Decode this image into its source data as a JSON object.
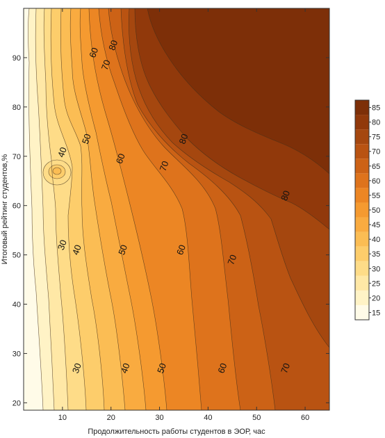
{
  "chart_data": {
    "type": "contour",
    "xlabel": "Продолжительность работы студентов в ЭОР, час",
    "ylabel": "Итоговый рейтинг студентов,%",
    "xlim": [
      2,
      65
    ],
    "ylim": [
      18.5,
      100
    ],
    "x_ticks": [
      10,
      20,
      30,
      40,
      50,
      60
    ],
    "y_ticks": [
      20,
      30,
      40,
      50,
      60,
      70,
      80,
      90
    ],
    "levels": [
      15,
      20,
      25,
      30,
      35,
      40,
      45,
      50,
      55,
      60,
      65,
      70,
      75,
      80,
      85
    ],
    "colorbar": {
      "placement": "right",
      "ticks": [
        15,
        20,
        25,
        30,
        35,
        40,
        45,
        50,
        55,
        60,
        65,
        70,
        75,
        80,
        85
      ],
      "colors": [
        "#fffbe8",
        "#fff3c6",
        "#ffe8a6",
        "#fedc88",
        "#fdcd6b",
        "#fbbd54",
        "#f9ab40",
        "#f59a30",
        "#ec8624",
        "#de731c",
        "#cc6216",
        "#b95312",
        "#a5470f",
        "#91390b",
        "#7d2f08"
      ]
    },
    "contour_labels": [
      {
        "value": "30",
        "x": 13,
        "y": 27
      },
      {
        "value": "40",
        "x": 23,
        "y": 27
      },
      {
        "value": "50",
        "x": 30.5,
        "y": 27
      },
      {
        "value": "60",
        "x": 43,
        "y": 27
      },
      {
        "value": "70",
        "x": 56,
        "y": 27
      },
      {
        "value": "30",
        "x": 10,
        "y": 52
      },
      {
        "value": "40",
        "x": 13,
        "y": 51
      },
      {
        "value": "50",
        "x": 22.5,
        "y": 51
      },
      {
        "value": "60",
        "x": 34.5,
        "y": 51
      },
      {
        "value": "70",
        "x": 45,
        "y": 49
      },
      {
        "value": "80",
        "x": 56,
        "y": 62
      },
      {
        "value": "40",
        "x": 10,
        "y": 70.8
      },
      {
        "value": "50",
        "x": 15,
        "y": 73.5
      },
      {
        "value": "60",
        "x": 22,
        "y": 69.5
      },
      {
        "value": "70",
        "x": 31,
        "y": 68
      },
      {
        "value": "80",
        "x": 35,
        "y": 73.5
      },
      {
        "value": "60",
        "x": 16.5,
        "y": 91
      },
      {
        "value": "70",
        "x": 19,
        "y": 88.5
      },
      {
        "value": "80",
        "x": 20.5,
        "y": 92.5
      }
    ]
  }
}
